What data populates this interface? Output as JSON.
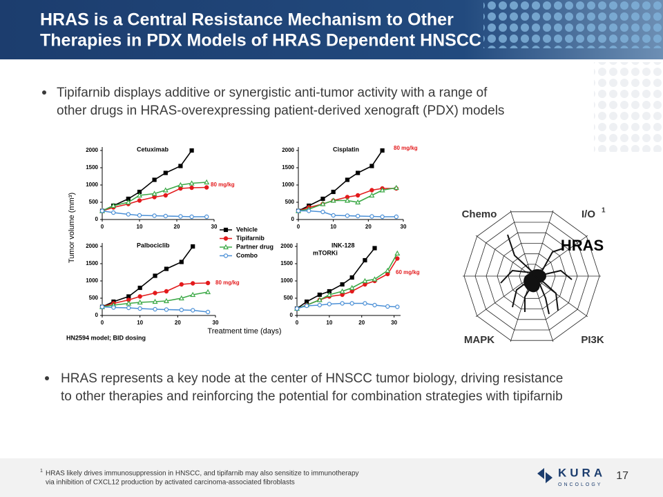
{
  "header": {
    "title_lines": [
      "HRAS is a Central Resistance Mechanism to Other",
      "Therapies in PDX Models of HRAS Dependent HNSCC"
    ]
  },
  "bullets": [
    {
      "lines": [
        "Tipifarnib displays additive or synergistic anti-tumor activity with a range of",
        "other drugs in HRAS-overexpressing patient-derived xenograft (PDX) models"
      ]
    },
    {
      "lines": [
        "HRAS represents a key node at the center of HNSCC tumor biology, driving resistance",
        "to other therapies and reinforcing the potential for combination strategies with tipifarnib"
      ]
    }
  ],
  "figure": {
    "ylabel": "Tumor volume (mm³)",
    "xlabel": "Treatment time (days)",
    "note": "HN2594 model; BID dosing"
  },
  "legend": [
    {
      "name": "Vehicle",
      "color": "#000000",
      "marker": "square",
      "filled": true
    },
    {
      "name": "Tipifarnib",
      "color": "#e31a1c",
      "marker": "circle",
      "filled": true
    },
    {
      "name": "Partner drug",
      "color": "#3aa845",
      "marker": "triangle",
      "filled": false
    },
    {
      "name": "Combo",
      "color": "#4a8fd6",
      "marker": "circle",
      "filled": false
    }
  ],
  "chart_data": [
    {
      "type": "line",
      "title": "Cetuximab",
      "annotation": "80 mg/kg",
      "x": [
        0,
        3,
        7,
        10,
        14,
        17,
        21,
        24,
        28
      ],
      "xlim": [
        0,
        30
      ],
      "xticks": [
        0,
        10,
        20,
        30
      ],
      "ylim": [
        0,
        2100
      ],
      "yticks": [
        0,
        500,
        1000,
        1500,
        2000
      ],
      "series": [
        {
          "values": [
            250,
            400,
            600,
            800,
            1150,
            1350,
            1550,
            2000,
            null
          ]
        },
        {
          "values": [
            250,
            350,
            450,
            550,
            650,
            700,
            900,
            920,
            930
          ]
        },
        {
          "values": [
            250,
            400,
            500,
            700,
            750,
            850,
            1000,
            1050,
            1080
          ]
        },
        {
          "values": [
            250,
            200,
            150,
            120,
            110,
            100,
            90,
            80,
            80
          ]
        }
      ]
    },
    {
      "type": "line",
      "title": "Cisplatin",
      "annotation": "80 mg/kg",
      "x": [
        0,
        3,
        7,
        10,
        14,
        17,
        21,
        24,
        28
      ],
      "xlim": [
        0,
        30
      ],
      "xticks": [
        0,
        10,
        20,
        30
      ],
      "ylim": [
        0,
        2100
      ],
      "yticks": [
        0,
        500,
        1000,
        1500,
        2000
      ],
      "series": [
        {
          "values": [
            250,
            400,
            600,
            800,
            1150,
            1350,
            1550,
            2000,
            null
          ]
        },
        {
          "values": [
            250,
            350,
            450,
            550,
            650,
            700,
            850,
            900,
            900
          ]
        },
        {
          "values": [
            250,
            300,
            450,
            550,
            550,
            500,
            700,
            850,
            920
          ]
        },
        {
          "values": [
            250,
            250,
            220,
            120,
            110,
            100,
            90,
            80,
            80
          ]
        }
      ]
    },
    {
      "type": "line",
      "title": "Palbociclib",
      "annotation": "80 mg/kg",
      "x": [
        0,
        3,
        7,
        10,
        14,
        17,
        21,
        24,
        28
      ],
      "xlim": [
        0,
        30
      ],
      "xticks": [
        0,
        10,
        20,
        30
      ],
      "ylim": [
        0,
        2100
      ],
      "yticks": [
        0,
        500,
        1000,
        1500,
        2000
      ],
      "series": [
        {
          "values": [
            250,
            400,
            550,
            800,
            1150,
            1350,
            1550,
            2000,
            null
          ]
        },
        {
          "values": [
            250,
            350,
            450,
            550,
            650,
            700,
            900,
            930,
            940
          ]
        },
        {
          "values": [
            250,
            300,
            350,
            380,
            400,
            420,
            500,
            600,
            680
          ]
        },
        {
          "values": [
            250,
            230,
            220,
            200,
            180,
            170,
            160,
            150,
            100
          ]
        }
      ]
    },
    {
      "type": "line",
      "title": "INK-128",
      "subtitle": "mTORKi",
      "annotation": "60 mg/kg",
      "x": [
        0,
        3,
        7,
        10,
        14,
        17,
        21,
        24,
        28,
        31
      ],
      "xlim": [
        0,
        32
      ],
      "xticks": [
        0,
        10,
        20,
        30
      ],
      "ylim": [
        0,
        2100
      ],
      "yticks": [
        0,
        500,
        1000,
        1500,
        2000
      ],
      "series": [
        {
          "values": [
            200,
            400,
            600,
            700,
            900,
            1100,
            1600,
            1950,
            null,
            null
          ]
        },
        {
          "values": [
            200,
            300,
            450,
            550,
            600,
            700,
            900,
            1000,
            1200,
            1650
          ]
        },
        {
          "values": [
            200,
            300,
            450,
            600,
            700,
            800,
            1000,
            1050,
            1300,
            1800
          ]
        },
        {
          "values": [
            200,
            280,
            300,
            330,
            350,
            350,
            350,
            300,
            260,
            250
          ]
        }
      ]
    }
  ],
  "diagram": {
    "chemo": "Chemo",
    "io": "I/O",
    "io_sup": "1",
    "center": "HRAS",
    "mapk": "MAPK",
    "pi3k": "PI3K"
  },
  "footer": {
    "marker": "1",
    "lines": [
      "HRAS likely drives immunosuppression in HNSCC, and tipifarnib may also sensitize to immunotherapy",
      "via inhibition of CXCL12 production by activated carcinoma-associated fibroblasts"
    ],
    "page": "17",
    "logo": "KURA",
    "logo_sub": "ONCOLOGY"
  }
}
